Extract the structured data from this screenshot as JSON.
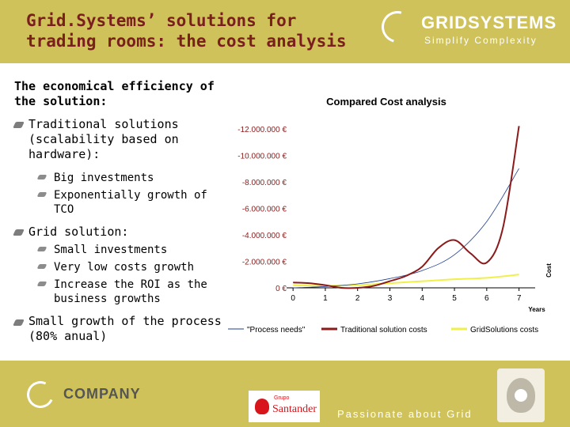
{
  "slide": {
    "title": "Grid.Systems’ solutions for trading rooms: the cost analysis"
  },
  "brand": {
    "logo_text": "GRIDSYSTEMS",
    "tagline": "Simplify Complexity"
  },
  "content": {
    "heading": "The economical efficiency of the solution:",
    "traditional": {
      "label": "Traditional solutions (scalability based on hardware):",
      "items": [
        "Big investments",
        "Exponentially growth of TCO"
      ]
    },
    "grid": {
      "label": "Grid solution:",
      "items": [
        "Small investments",
        "Very low costs growth",
        "Increase the ROI as the business growths"
      ]
    },
    "growth": {
      "label": "Small growth of the process (80% anual)"
    }
  },
  "chart_data": {
    "type": "line",
    "title": "Compared Cost analysis",
    "xlabel": "Years",
    "ylabel": "Cost",
    "x": [
      0,
      1,
      2,
      3,
      4,
      5,
      6,
      7
    ],
    "x_ticks": [
      "0",
      "1",
      "2",
      "3",
      "4",
      "5",
      "6",
      "7"
    ],
    "y_ticks": [
      "0 €",
      "-2.000.000 €",
      "-4.000.000 €",
      "-6.000.000 €",
      "-8.000.000 €",
      "-10.000.000 €",
      "-12.000.000 €"
    ],
    "ylim": [
      0,
      13000000
    ],
    "xlim": [
      -0.2,
      7.5
    ],
    "series": [
      {
        "name": "\"Process needs\"",
        "color": "#1f3f8f",
        "x": [
          0,
          1,
          2,
          3,
          4,
          5,
          6,
          7
        ],
        "values": [
          0,
          100000,
          300000,
          700000,
          1300000,
          2500000,
          5000000,
          9000000
        ]
      },
      {
        "name": "Traditional solution costs",
        "color": "#8b1a1a",
        "x": [
          0,
          0.5,
          1,
          1.5,
          2,
          2.5,
          3,
          3.5,
          4,
          4.5,
          5,
          5.5,
          6,
          6.5,
          7
        ],
        "values": [
          400000,
          350000,
          200000,
          0,
          0,
          150000,
          500000,
          900000,
          1600000,
          3000000,
          3600000,
          2600000,
          1900000,
          4500000,
          12200000
        ]
      },
      {
        "name": "GridSolutions costs",
        "color": "#f0f04a",
        "x": [
          0,
          1,
          2,
          3,
          4,
          5,
          6,
          7
        ],
        "values": [
          200000,
          150000,
          200000,
          350000,
          500000,
          650000,
          750000,
          1000000
        ]
      }
    ],
    "legend_position": "bottom",
    "grid": false
  },
  "footer": {
    "company": "COMPANY",
    "sponsor_small": "Grupo",
    "sponsor_name": "Santander",
    "tagline": "Passionate about Grid"
  }
}
